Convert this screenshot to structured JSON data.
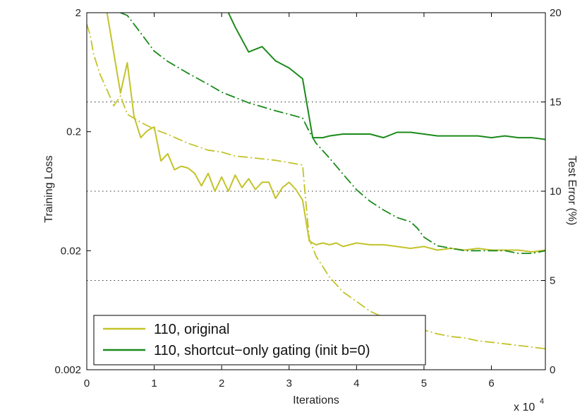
{
  "chart_data": {
    "type": "line",
    "xlabel": "Iterations",
    "x_multiplier": "x 10",
    "x_multiplier_exp": "4",
    "ylabel_left": "Training Loss",
    "ylabel_right": "Test Error (%)",
    "x_ticks": [
      "0",
      "1",
      "2",
      "3",
      "4",
      "5",
      "6"
    ],
    "y_left_ticks": [
      "2",
      "0.2",
      "0.02",
      "0.002"
    ],
    "y_right_ticks": [
      "20",
      "15",
      "10",
      "5",
      "0"
    ],
    "x_range": [
      0,
      6.8
    ],
    "y_left_range": [
      0.002,
      2
    ],
    "y_left_scale": "log",
    "y_right_range": [
      0,
      20
    ],
    "right_gridlines": [
      5,
      10,
      15
    ],
    "legend": {
      "placement": "bottom-left",
      "entries": [
        "110, original",
        "110, shortcut−only gating (init b=0)"
      ]
    },
    "colors": {
      "original": "#c3c32a",
      "gated": "#1b8a1b"
    },
    "series": [
      {
        "name": "110, original",
        "metric": "test_error",
        "axis": "right",
        "style": "solid",
        "color": "#c3c32a",
        "x": [
          0.3,
          0.5,
          0.6,
          0.7,
          0.8,
          0.9,
          1.0,
          1.1,
          1.2,
          1.3,
          1.4,
          1.5,
          1.6,
          1.7,
          1.8,
          1.9,
          2.0,
          2.1,
          2.2,
          2.3,
          2.4,
          2.5,
          2.6,
          2.7,
          2.8,
          2.9,
          3.0,
          3.1,
          3.2,
          3.3,
          3.4,
          3.5,
          3.6,
          3.7,
          3.8,
          4.0,
          4.2,
          4.4,
          4.6,
          4.8,
          5.0,
          5.2,
          5.4,
          5.6,
          5.8,
          6.0,
          6.2,
          6.4,
          6.6,
          6.8
        ],
        "values": [
          20,
          15.5,
          17.2,
          14.2,
          13,
          13.4,
          13.6,
          11.7,
          12.1,
          11.2,
          11.4,
          11.3,
          11.0,
          10.3,
          11.0,
          10.0,
          10.8,
          10.0,
          10.9,
          10.2,
          10.7,
          10.1,
          10.5,
          10.5,
          9.6,
          10.2,
          10.5,
          10.1,
          9.5,
          7.2,
          7.0,
          7.1,
          7.0,
          7.1,
          6.9,
          7.1,
          7.0,
          7.0,
          6.9,
          6.8,
          6.9,
          6.7,
          6.8,
          6.7,
          6.8,
          6.7,
          6.7,
          6.7,
          6.6,
          6.7
        ]
      },
      {
        "name": "110, original",
        "metric": "training_loss",
        "axis": "left",
        "style": "dashdot",
        "color": "#c3c32a",
        "x": [
          0,
          0.05,
          0.1,
          0.2,
          0.3,
          0.4,
          0.5,
          0.6,
          0.8,
          1.0,
          1.2,
          1.5,
          1.8,
          2.0,
          2.2,
          2.5,
          2.8,
          3.0,
          3.2,
          3.25,
          3.3,
          3.4,
          3.6,
          3.8,
          4.0,
          4.2,
          4.4,
          4.6,
          4.8,
          5.0,
          5.2,
          5.4,
          5.6,
          5.8,
          6.0,
          6.2,
          6.4,
          6.6,
          6.8
        ],
        "values": [
          1.6,
          1.3,
          0.9,
          0.6,
          0.45,
          0.33,
          0.4,
          0.28,
          0.24,
          0.21,
          0.19,
          0.16,
          0.14,
          0.135,
          0.125,
          0.12,
          0.115,
          0.11,
          0.105,
          0.05,
          0.025,
          0.018,
          0.012,
          0.009,
          0.0075,
          0.0062,
          0.0055,
          0.005,
          0.0046,
          0.0043,
          0.004,
          0.0038,
          0.0037,
          0.0035,
          0.0034,
          0.0033,
          0.0032,
          0.0031,
          0.003
        ]
      },
      {
        "name": "110, shortcut−only gating (init b=0)",
        "metric": "test_error",
        "axis": "right",
        "style": "solid",
        "color": "#1b8a1b",
        "x": [
          2.1,
          2.2,
          2.4,
          2.6,
          2.8,
          3.0,
          3.2,
          3.35,
          3.5,
          3.6,
          3.8,
          4.0,
          4.2,
          4.4,
          4.6,
          4.8,
          5.0,
          5.2,
          5.4,
          5.6,
          5.8,
          6.0,
          6.2,
          6.4,
          6.6,
          6.8
        ],
        "values": [
          20,
          19.2,
          17.8,
          18.1,
          17.3,
          16.9,
          16.3,
          13.0,
          13.0,
          13.1,
          13.2,
          13.2,
          13.2,
          13.0,
          13.3,
          13.3,
          13.2,
          13.1,
          13.1,
          13.1,
          13.1,
          13.0,
          13.1,
          13.0,
          13.0,
          12.9
        ]
      },
      {
        "name": "110, shortcut−only gating (init b=0)",
        "metric": "training_loss",
        "axis": "left",
        "style": "dashdot",
        "color": "#1b8a1b",
        "x": [
          0.5,
          0.6,
          0.8,
          1.0,
          1.2,
          1.5,
          1.8,
          2.0,
          2.4,
          2.8,
          3.0,
          3.2,
          3.3,
          3.4,
          3.6,
          3.8,
          4.0,
          4.2,
          4.4,
          4.6,
          4.8,
          4.9,
          5.0,
          5.2,
          5.4,
          5.6,
          5.8,
          6.0,
          6.2,
          6.4,
          6.6,
          6.8
        ],
        "values": [
          2.0,
          1.9,
          1.35,
          0.95,
          0.78,
          0.62,
          0.5,
          0.43,
          0.35,
          0.3,
          0.28,
          0.26,
          0.2,
          0.16,
          0.12,
          0.088,
          0.065,
          0.052,
          0.044,
          0.038,
          0.035,
          0.031,
          0.026,
          0.022,
          0.021,
          0.02,
          0.02,
          0.02,
          0.02,
          0.019,
          0.019,
          0.02
        ]
      }
    ]
  }
}
